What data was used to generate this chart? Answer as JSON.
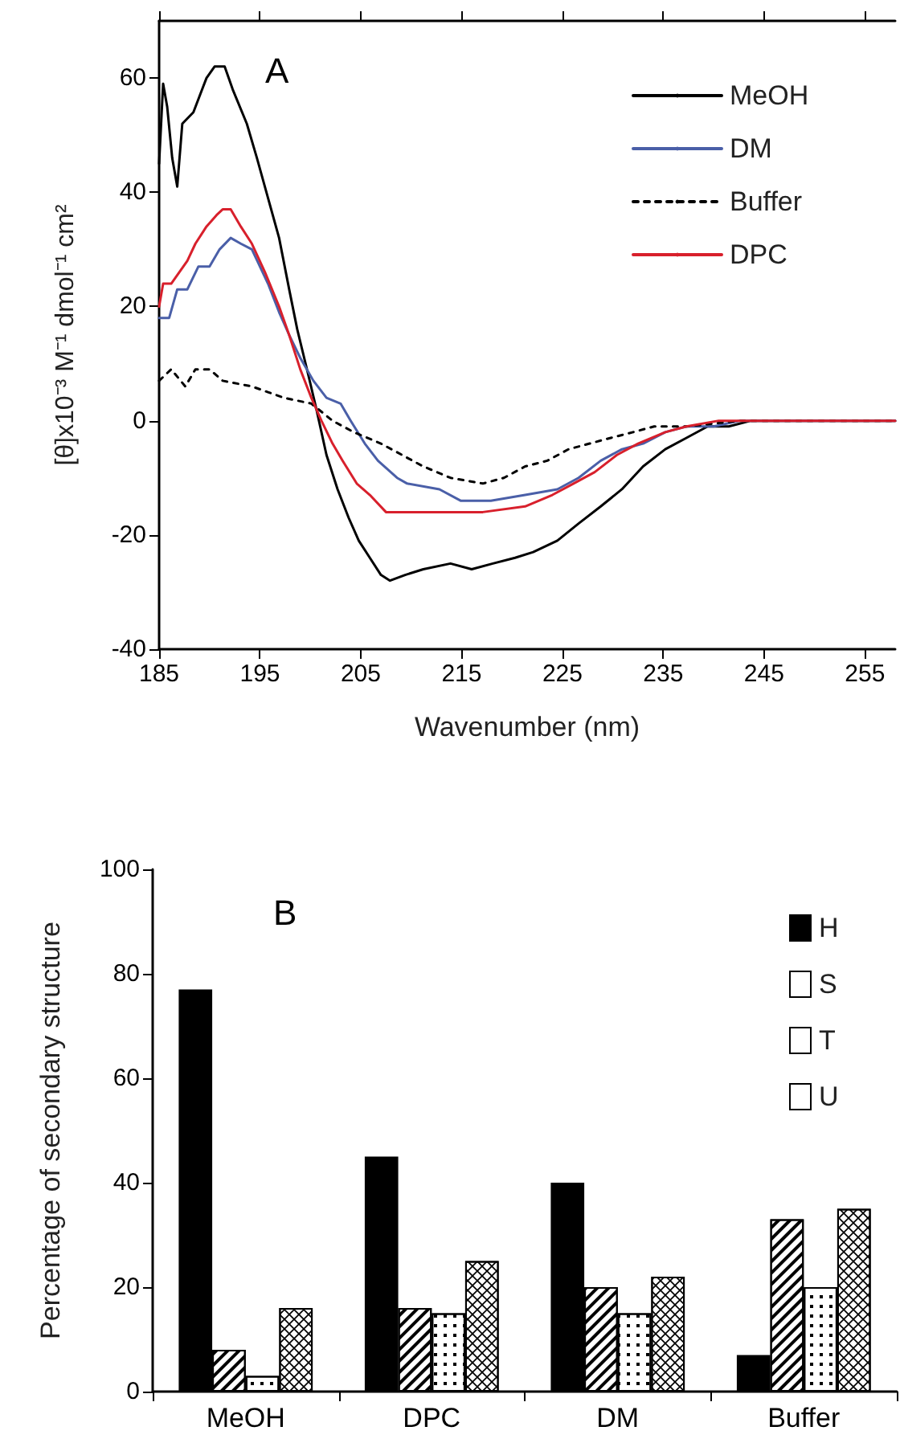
{
  "chart_data": [
    {
      "type": "line",
      "title": "A",
      "xlabel": "Wavenumber (nm)",
      "ylabel": "[θ]x10⁻³ M⁻¹ dmol⁻¹ cm²",
      "xlim": [
        185,
        258
      ],
      "xticks": [
        185,
        195,
        205,
        215,
        225,
        235,
        245,
        255
      ],
      "ylim": [
        -40,
        70
      ],
      "yticks": [
        -40,
        -20,
        0,
        20,
        40,
        60
      ],
      "grid": false,
      "legend": "top right",
      "marker": "none",
      "series": [
        {
          "name": "MeOH",
          "color": "#000000",
          "line_style": "solid",
          "x": [
            185,
            185.4,
            185.8,
            186.3,
            186.8,
            187.3,
            188.4,
            189.7,
            190.5,
            191.5,
            192.3,
            193.7,
            194.7,
            195.8,
            196.9,
            197.9,
            198.7,
            199.8,
            200.6,
            201.6,
            202.7,
            203.8,
            204.8,
            205.9,
            207,
            207.9,
            209.4,
            211.2,
            213.9,
            216,
            218.1,
            220.3,
            222.1,
            224.5,
            226.6,
            228.8,
            230.9,
            233,
            235.2,
            237.3,
            239.4,
            241.5,
            243.7,
            250,
            258
          ],
          "values": [
            45,
            59,
            55,
            46,
            41,
            52,
            54,
            60,
            62,
            62,
            58,
            52,
            46,
            39,
            32,
            23,
            16,
            8,
            2,
            -6,
            -12,
            -17,
            -21,
            -24,
            -27,
            -28,
            -27,
            -26,
            -25,
            -26,
            -25,
            -24,
            -23,
            -21,
            -18,
            -15,
            -12,
            -8,
            -5,
            -3,
            -1,
            -1,
            0,
            0,
            0
          ]
        },
        {
          "name": "DM",
          "color": "#4a5fa8",
          "line_style": "solid",
          "x": [
            185,
            186,
            186.8,
            187.8,
            188.9,
            190,
            191,
            192.1,
            193.1,
            194.2,
            195.8,
            196.9,
            197.9,
            199,
            200.3,
            201.6,
            203,
            204,
            205.4,
            206.7,
            208.6,
            209.6,
            212.8,
            214.9,
            217.9,
            221.3,
            224.5,
            226.6,
            228.8,
            230.9,
            233,
            235.2,
            237.3,
            240,
            242.6,
            250,
            258
          ],
          "values": [
            18,
            18,
            23,
            23,
            27,
            27,
            30,
            32,
            31,
            30,
            24,
            19,
            15,
            11,
            7,
            4,
            3,
            0,
            -4,
            -7,
            -10,
            -11,
            -12,
            -14,
            -14,
            -13,
            -12,
            -10,
            -7,
            -5,
            -4,
            -2,
            -1,
            -1,
            0,
            0,
            0
          ]
        },
        {
          "name": "Buffer",
          "color": "#000000",
          "line_style": "dotted",
          "x": [
            185,
            186.2,
            187.6,
            188.6,
            190,
            191.3,
            194.2,
            195.8,
            197.4,
            200.1,
            202.2,
            204.3,
            207,
            209.1,
            211.2,
            213.9,
            217.1,
            219.2,
            221.3,
            223.5,
            225.6,
            227.7,
            229.8,
            232,
            234.1,
            237.3,
            242.6,
            245.8,
            258
          ],
          "values": [
            7,
            9,
            6,
            9,
            9,
            7,
            6,
            5,
            4,
            3,
            0,
            -2,
            -4,
            -6,
            -8,
            -10,
            -11,
            -10,
            -8,
            -7,
            -5,
            -4,
            -3,
            -2,
            -1,
            -1,
            0,
            0,
            0
          ]
        },
        {
          "name": "DPC",
          "color": "#d8202c",
          "line_style": "solid",
          "x": [
            185,
            185.4,
            186.2,
            187,
            187.8,
            188.6,
            189.7,
            190.7,
            191.3,
            192.1,
            193.1,
            194.2,
            195.5,
            196.9,
            197.9,
            199,
            200.1,
            201.1,
            202.2,
            203.2,
            204.6,
            205.9,
            207.5,
            209.1,
            213.4,
            217.1,
            221.3,
            224,
            226.1,
            228.2,
            230.4,
            232.5,
            235.2,
            237.3,
            240.5,
            245.8,
            258
          ],
          "values": [
            20,
            24,
            24,
            26,
            28,
            31,
            34,
            36,
            37,
            37,
            34,
            31,
            26,
            20,
            15,
            9,
            4,
            0,
            -4,
            -7,
            -11,
            -13,
            -16,
            -16,
            -16,
            -16,
            -15,
            -13,
            -11,
            -9,
            -6,
            -4,
            -2,
            -1,
            0,
            0,
            0
          ]
        }
      ]
    },
    {
      "type": "bar",
      "title": "B",
      "ylabel": "Percentage of secondary structure",
      "categories": [
        "MeOH",
        "DPC",
        "DM",
        "Buffer"
      ],
      "ylim": [
        0,
        100
      ],
      "yticks": [
        0,
        20,
        40,
        60,
        80,
        100
      ],
      "grid": false,
      "legend": "top right",
      "series": [
        {
          "name": "H",
          "color": "#000000",
          "values": [
            77,
            45,
            40,
            7
          ]
        },
        {
          "name": "S",
          "color": "#ffffff",
          "values": [
            8,
            16,
            20,
            33
          ]
        },
        {
          "name": "T",
          "color": "#ffffff",
          "values": [
            3,
            15,
            15,
            20
          ]
        },
        {
          "name": "U",
          "color": "#ffffff",
          "values": [
            16,
            25,
            22,
            35
          ]
        }
      ]
    }
  ]
}
